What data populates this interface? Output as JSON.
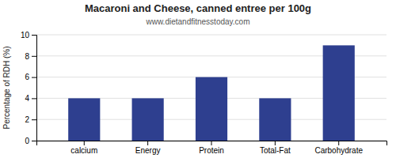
{
  "chart_data": {
    "type": "bar",
    "title": "Macaroni and Cheese, canned entree per 100g",
    "subtitle": "www.dietandfitnesstoday.com",
    "categories": [
      "calcium",
      "Energy",
      "Protein",
      "Total-Fat",
      "Carbohydrate"
    ],
    "values": [
      4,
      4,
      6,
      4,
      9
    ],
    "color": "#2e3f8f",
    "ylabel": "Percentage of RDH (%)",
    "ylim": [
      0,
      10
    ],
    "yticks": [
      0,
      2,
      4,
      6,
      8,
      10
    ],
    "grid": true
  }
}
